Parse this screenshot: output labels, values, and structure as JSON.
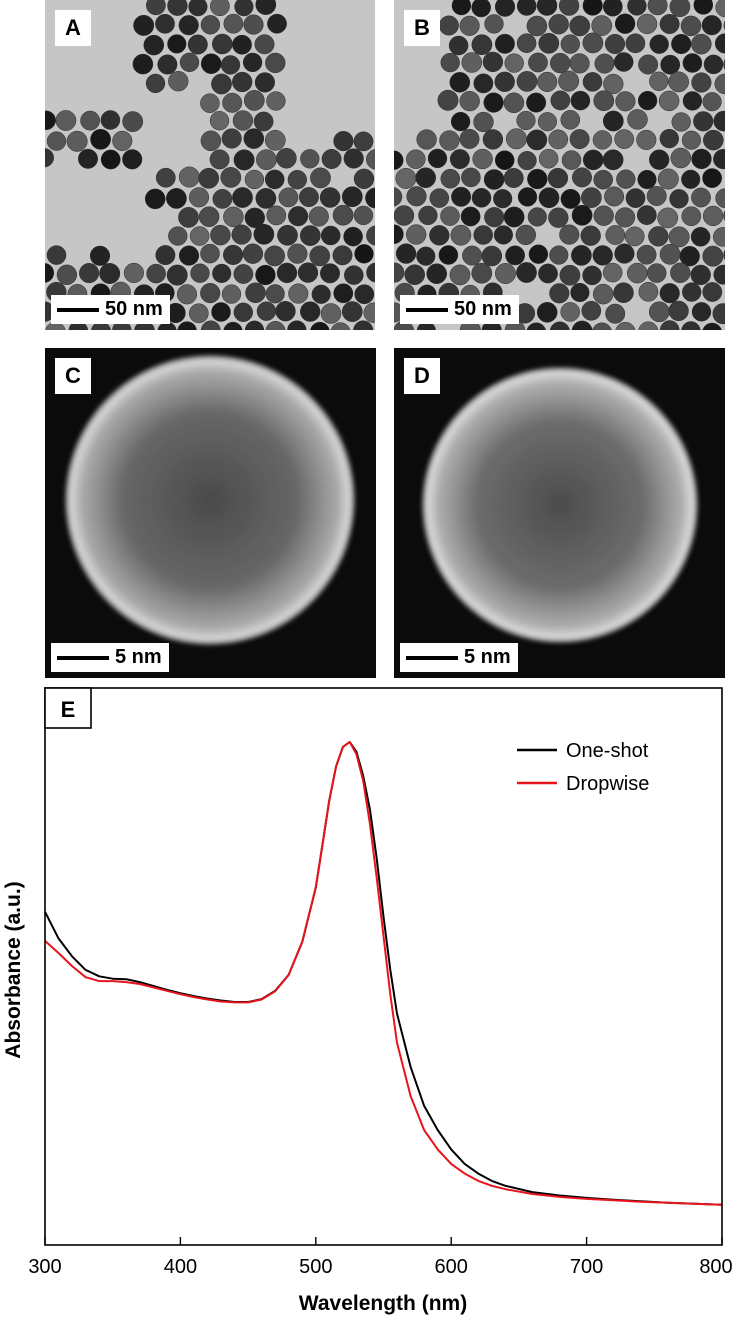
{
  "panels": [
    {
      "id": "A",
      "label": "A",
      "scale_text": "50 nm",
      "image_type": "tem-nanoparticle-array"
    },
    {
      "id": "B",
      "label": "B",
      "scale_text": "50 nm",
      "image_type": "tem-nanoparticle-array"
    },
    {
      "id": "C",
      "label": "C",
      "scale_text": "5 nm",
      "image_type": "haadf-single-particle"
    },
    {
      "id": "D",
      "label": "D",
      "scale_text": "5 nm",
      "image_type": "haadf-single-particle"
    }
  ],
  "chart_data": {
    "type": "line",
    "panel_label": "E",
    "xlabel": "Wavelength (nm)",
    "ylabel": "Absorbance (a.u.)",
    "xlim": [
      300,
      800
    ],
    "ylim": [
      0,
      1
    ],
    "xticks": [
      "300",
      "400",
      "500",
      "600",
      "700",
      "800"
    ],
    "legend_position": "top-right",
    "grid": false,
    "series": [
      {
        "name": "One-shot",
        "color": "#000000",
        "x": [
          300,
          310,
          320,
          330,
          340,
          350,
          360,
          370,
          380,
          390,
          400,
          410,
          420,
          430,
          440,
          450,
          460,
          470,
          480,
          490,
          500,
          505,
          510,
          515,
          520,
          525,
          530,
          535,
          540,
          545,
          550,
          555,
          560,
          570,
          580,
          590,
          600,
          610,
          620,
          630,
          640,
          660,
          680,
          700,
          720,
          740,
          760,
          780,
          800
        ],
        "y": [
          0.65,
          0.595,
          0.558,
          0.53,
          0.517,
          0.512,
          0.511,
          0.505,
          0.497,
          0.489,
          0.482,
          0.476,
          0.471,
          0.467,
          0.464,
          0.464,
          0.47,
          0.487,
          0.52,
          0.588,
          0.7,
          0.79,
          0.88,
          0.95,
          0.99,
          1.0,
          0.98,
          0.93,
          0.86,
          0.76,
          0.64,
          0.53,
          0.44,
          0.33,
          0.25,
          0.2,
          0.16,
          0.13,
          0.11,
          0.095,
          0.085,
          0.072,
          0.065,
          0.06,
          0.056,
          0.053,
          0.05,
          0.048,
          0.046
        ]
      },
      {
        "name": "Dropwise",
        "color": "#e8141b",
        "x": [
          300,
          310,
          320,
          330,
          340,
          350,
          360,
          370,
          380,
          390,
          400,
          410,
          420,
          430,
          440,
          450,
          460,
          470,
          480,
          490,
          500,
          505,
          510,
          515,
          520,
          525,
          530,
          535,
          540,
          545,
          550,
          555,
          560,
          570,
          580,
          590,
          600,
          610,
          620,
          630,
          640,
          660,
          680,
          700,
          720,
          740,
          760,
          780,
          800
        ],
        "y": [
          0.59,
          0.565,
          0.538,
          0.515,
          0.507,
          0.507,
          0.505,
          0.501,
          0.494,
          0.487,
          0.48,
          0.474,
          0.469,
          0.465,
          0.463,
          0.463,
          0.469,
          0.486,
          0.52,
          0.588,
          0.7,
          0.79,
          0.88,
          0.95,
          0.99,
          1.0,
          0.975,
          0.92,
          0.83,
          0.72,
          0.6,
          0.48,
          0.38,
          0.27,
          0.2,
          0.16,
          0.13,
          0.11,
          0.095,
          0.085,
          0.078,
          0.068,
          0.062,
          0.058,
          0.055,
          0.052,
          0.05,
          0.048,
          0.046
        ]
      }
    ]
  }
}
